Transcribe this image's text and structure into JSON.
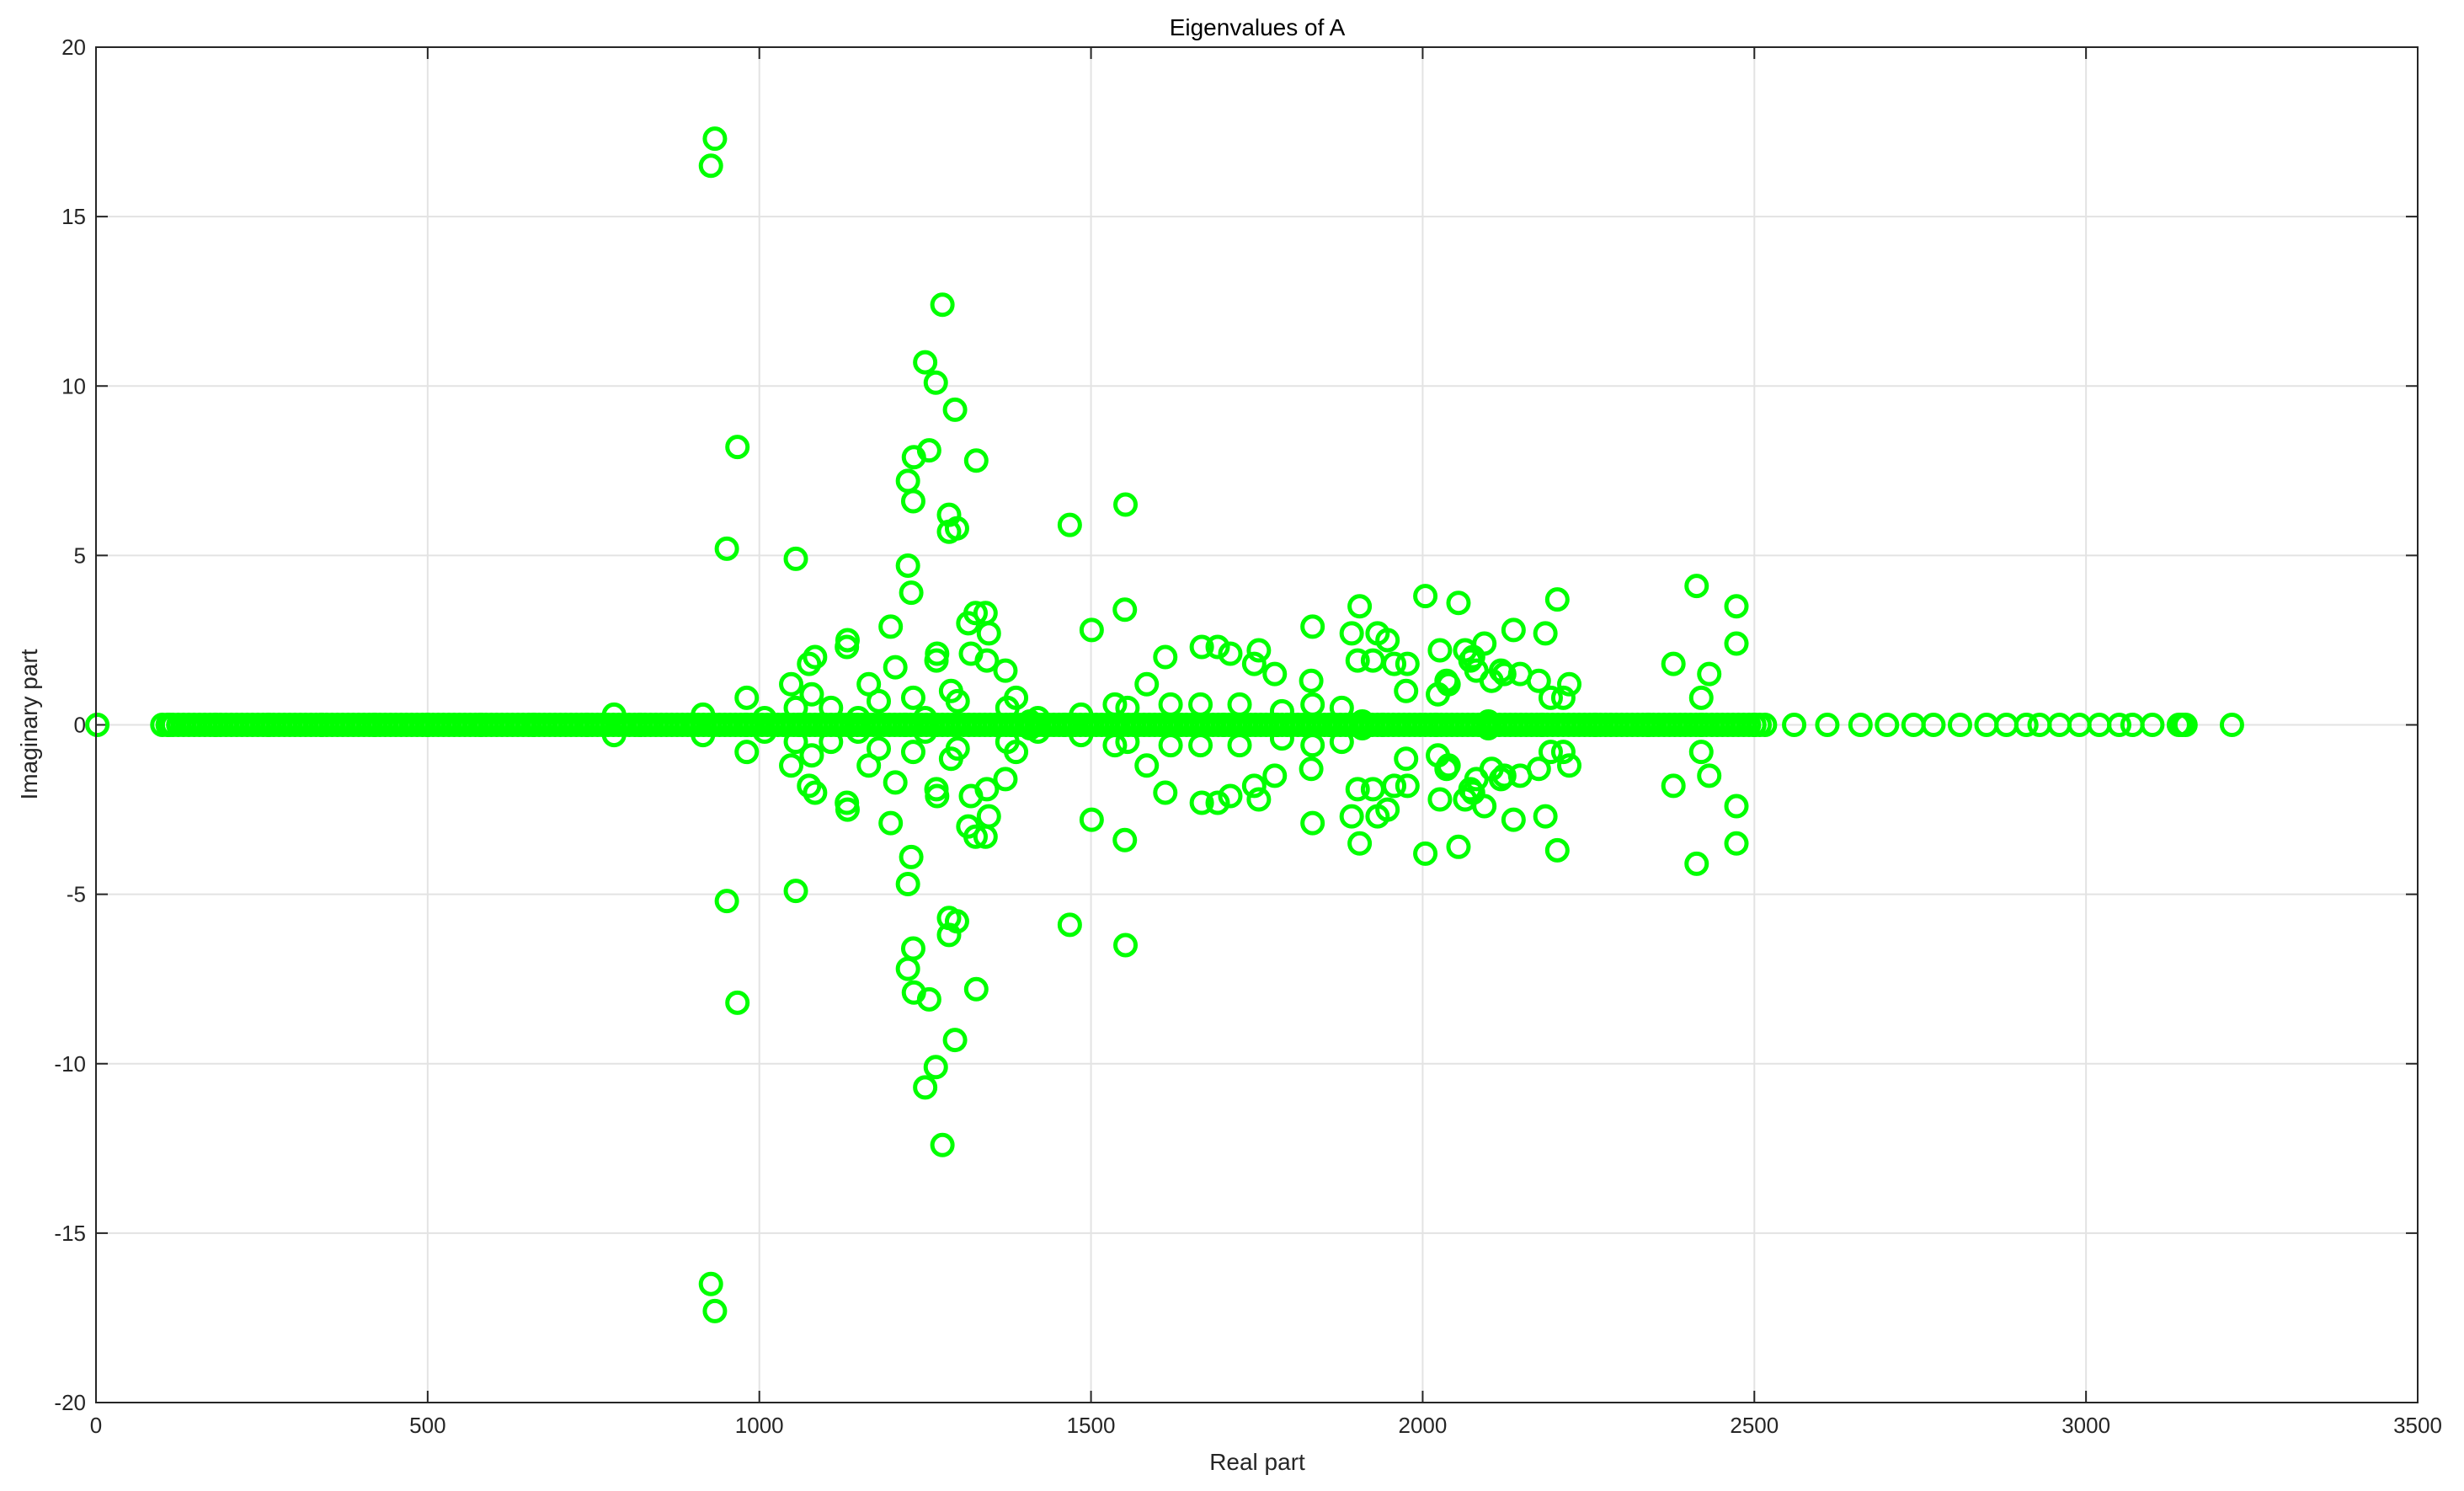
{
  "chart_data": {
    "type": "scatter",
    "title": "Eigenvalues of A",
    "xlabel": "Real part",
    "ylabel": "Imaginary part",
    "xlim": [
      0,
      3500
    ],
    "ylim": [
      -20,
      20
    ],
    "xticks": [
      0,
      500,
      1000,
      1500,
      2000,
      2500,
      3000,
      3500
    ],
    "yticks": [
      -20,
      -15,
      -10,
      -5,
      0,
      5,
      10,
      15,
      20
    ],
    "xtick_labels": [
      "0",
      "500",
      "1000",
      "1500",
      "2000",
      "2500",
      "3000",
      "3500"
    ],
    "ytick_labels": [
      "-20",
      "-15",
      "-10",
      "-5",
      "0",
      "5",
      "10",
      "15",
      "20"
    ],
    "grid": true,
    "marker": "circle",
    "marker_color": "#00ff00",
    "series": [
      {
        "conjugate_pairs": [
          [
            933,
            17.3
          ],
          [
            927,
            16.5
          ],
          [
            1276,
            12.4
          ],
          [
            1250,
            10.7
          ],
          [
            1266,
            10.1
          ],
          [
            1295,
            9.3
          ],
          [
            967,
            8.2
          ],
          [
            1256,
            8.1
          ],
          [
            1233,
            7.9
          ],
          [
            1327,
            7.8
          ],
          [
            1224,
            7.2
          ],
          [
            1232,
            6.6
          ],
          [
            1552,
            6.5
          ],
          [
            1286,
            6.2
          ],
          [
            1468,
            5.9
          ],
          [
            1298,
            5.8
          ],
          [
            1286,
            5.7
          ],
          [
            951,
            5.2
          ],
          [
            1055,
            4.9
          ],
          [
            1224,
            4.7
          ],
          [
            2413,
            4.1
          ],
          [
            1229,
            3.9
          ],
          [
            2004,
            3.8
          ],
          [
            2203,
            3.7
          ],
          [
            2054,
            3.6
          ],
          [
            1905,
            3.5
          ],
          [
            2473,
            3.5
          ],
          [
            1551,
            3.4
          ],
          [
            1341,
            3.3
          ],
          [
            1326,
            3.3
          ],
          [
            1315,
            3.0
          ],
          [
            1198,
            2.9
          ],
          [
            1501,
            2.8
          ],
          [
            1834,
            2.9
          ],
          [
            2137,
            2.8
          ],
          [
            1346,
            2.7
          ],
          [
            1893,
            2.7
          ],
          [
            2185,
            2.7
          ],
          [
            1932,
            2.7
          ],
          [
            1947,
            2.5
          ],
          [
            1133,
            2.5
          ],
          [
            2093,
            2.4
          ],
          [
            1132,
            2.3
          ],
          [
            1691,
            2.3
          ],
          [
            1667,
            2.3
          ],
          [
            2473,
            2.4
          ],
          [
            1753,
            2.2
          ],
          [
            1319,
            2.1
          ],
          [
            1710,
            2.1
          ],
          [
            2026,
            2.2
          ],
          [
            2064,
            2.2
          ],
          [
            1268,
            2.1
          ],
          [
            2076,
            2.0
          ],
          [
            1612,
            2.0
          ],
          [
            1084,
            2.0
          ],
          [
            1267,
            1.9
          ],
          [
            2072,
            1.9
          ],
          [
            1343,
            1.9
          ],
          [
            1902,
            1.9
          ],
          [
            1925,
            1.9
          ],
          [
            1957,
            1.8
          ],
          [
            1746,
            1.8
          ],
          [
            1977,
            1.8
          ],
          [
            1075,
            1.8
          ],
          [
            2378,
            1.8
          ],
          [
            2118,
            1.6
          ],
          [
            2081,
            1.6
          ],
          [
            1205,
            1.7
          ],
          [
            1371,
            1.6
          ],
          [
            2123,
            1.5
          ],
          [
            2432,
            1.5
          ],
          [
            1777,
            1.5
          ],
          [
            2147,
            1.5
          ],
          [
            2104,
            1.3
          ],
          [
            2036,
            1.3
          ],
          [
            1832,
            1.3
          ],
          [
            2175,
            1.3
          ],
          [
            2221,
            1.2
          ],
          [
            1584,
            1.2
          ],
          [
            1048,
            1.2
          ],
          [
            1165,
            1.2
          ],
          [
            2039,
            1.2
          ],
          [
            1975,
            1.0
          ],
          [
            1289,
            1.0
          ],
          [
            1079,
            0.9
          ],
          [
            2023,
            0.9
          ],
          [
            2420,
            0.8
          ],
          [
            981,
            0.8
          ],
          [
            1387,
            0.8
          ],
          [
            2193,
            0.8
          ],
          [
            2212,
            0.8
          ],
          [
            1232,
            0.8
          ],
          [
            1180,
            0.7
          ],
          [
            1299,
            0.7
          ],
          [
            1536,
            0.6
          ],
          [
            1620,
            0.6
          ],
          [
            1665,
            0.6
          ],
          [
            1724,
            0.6
          ],
          [
            1834,
            0.6
          ],
          [
            1878,
            0.5
          ],
          [
            1055,
            0.5
          ],
          [
            1108,
            0.5
          ],
          [
            1374,
            0.5
          ],
          [
            1555,
            0.5
          ],
          [
            1788,
            0.4
          ],
          [
            915,
            0.3
          ],
          [
            781,
            0.3
          ],
          [
            1008,
            0.2
          ],
          [
            1149,
            0.2
          ],
          [
            1420,
            0.2
          ],
          [
            1485,
            0.3
          ],
          [
            1909,
            0.1
          ],
          [
            2099,
            0.1
          ],
          [
            1250,
            0.2
          ],
          [
            1408,
            0.1
          ]
        ],
        "real_axis_points": [
          2,
          110,
          180,
          260,
          340,
          420,
          500,
          580,
          660,
          740,
          820,
          900,
          980,
          1060,
          1140,
          1220,
          1300,
          1380,
          1460,
          1540,
          1620,
          1700,
          1780,
          1860,
          1940,
          2020,
          2100,
          2180,
          2260,
          2340,
          2420,
          2500,
          2560,
          2610,
          2660,
          2700,
          2740,
          2770,
          2810,
          2850,
          2880,
          2910,
          2930,
          2960,
          2990,
          3020,
          3050,
          3070,
          3100,
          3140,
          3145,
          3150,
          3220
        ]
      }
    ]
  }
}
